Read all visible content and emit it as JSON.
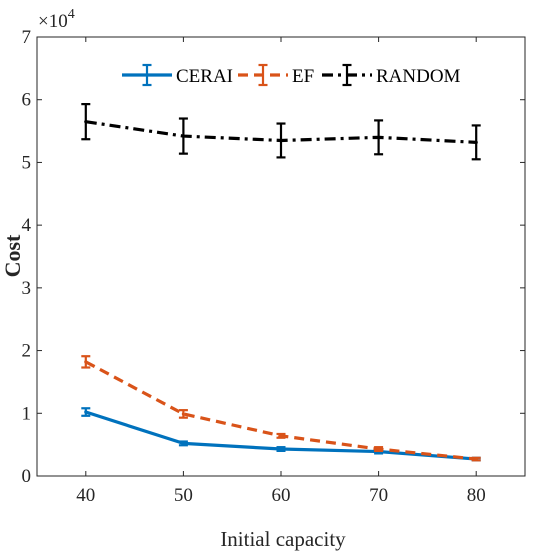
{
  "chart_data": {
    "type": "line",
    "xlabel": "Initial capacity",
    "ylabel": "Cost",
    "x": [
      40,
      50,
      60,
      70,
      80
    ],
    "xlim": [
      35,
      85
    ],
    "ylim": [
      0,
      7
    ],
    "y_exponent_label": "×10",
    "y_exponent_power": "4",
    "xticks": [
      "40",
      "50",
      "60",
      "70",
      "80"
    ],
    "yticks": [
      "0",
      "1",
      "2",
      "3",
      "4",
      "5",
      "6",
      "7"
    ],
    "legend_position": "top",
    "grid": false,
    "series": [
      {
        "name": "CERAI",
        "color": "#0072BD",
        "dash": "solid",
        "values": [
          1.02,
          0.52,
          0.43,
          0.39,
          0.27
        ],
        "errors": [
          0.06,
          0.03,
          0.03,
          0.03,
          0.02
        ]
      },
      {
        "name": "EF",
        "color": "#D95319",
        "dash": "dashed",
        "values": [
          1.82,
          0.99,
          0.64,
          0.43,
          0.27
        ],
        "errors": [
          0.09,
          0.06,
          0.03,
          0.03,
          0.02
        ]
      },
      {
        "name": "RANDOM",
        "color": "#000000",
        "dash": "dashdot",
        "values": [
          5.65,
          5.42,
          5.35,
          5.4,
          5.32
        ],
        "errors": [
          0.28,
          0.28,
          0.27,
          0.27,
          0.27
        ]
      }
    ]
  }
}
